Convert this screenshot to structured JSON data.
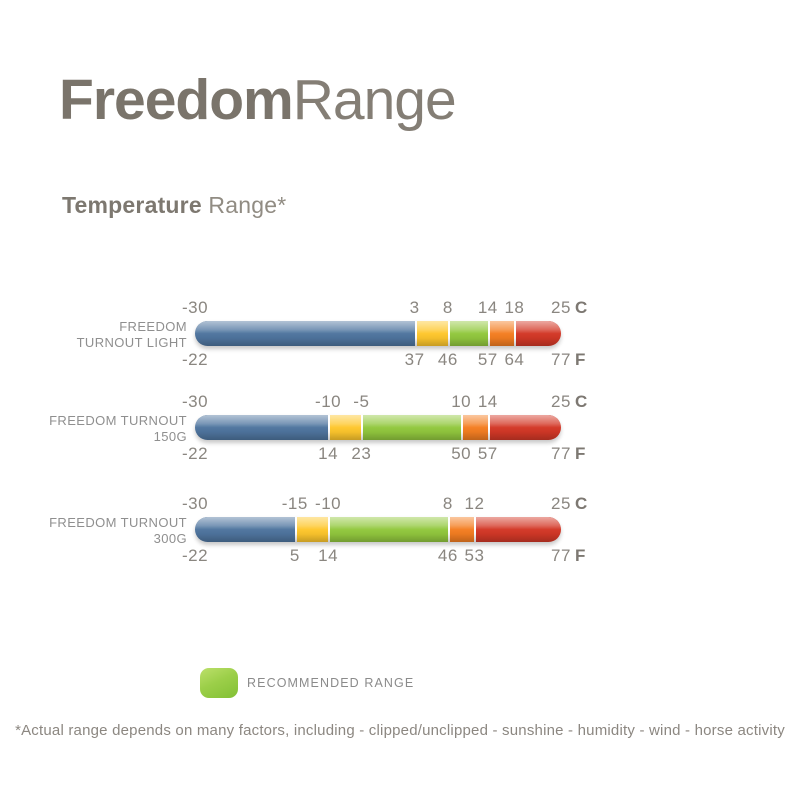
{
  "header": {
    "title_bold": "Freedom",
    "title_light": "Range"
  },
  "section_title": {
    "bold": "Temperature",
    "light": "Range*"
  },
  "legend": {
    "label": "RECOMMENDED RANGE"
  },
  "footnote": "*Actual range depends on many factors, including - clipped/unclipped - sunshine - humidity - wind - horse activity",
  "palette": {
    "blue": "#4f759f",
    "yellow": "#fec72d",
    "green": "#92c83e",
    "orange": "#f47e22",
    "red": "#d33827"
  },
  "chart_data": {
    "type": "bar",
    "variant": "horizontal-stacked-temperature-range",
    "title": "Temperature Range*",
    "legend": "RECOMMENDED RANGE = green segment",
    "axis": {
      "min_c": -30,
      "max_c": 25,
      "unit_top": "C",
      "unit_bottom": "F"
    },
    "rows": [
      {
        "label_lines": [
          "FREEDOM",
          "TURNOUT LIGHT"
        ],
        "c_labels": [
          "-30",
          "3",
          "8",
          "14",
          "18",
          "25"
        ],
        "f_labels": [
          "-22",
          "37",
          "46",
          "57",
          "64",
          "77"
        ],
        "boundary_values_c": [
          -30,
          3,
          8,
          14,
          18,
          25
        ],
        "segments": [
          {
            "from": -30,
            "to": 3,
            "color": "blue"
          },
          {
            "from": 3,
            "to": 8,
            "color": "yellow"
          },
          {
            "from": 8,
            "to": 14,
            "color": "green"
          },
          {
            "from": 14,
            "to": 18,
            "color": "orange"
          },
          {
            "from": 18,
            "to": 25,
            "color": "red"
          }
        ]
      },
      {
        "label_lines": [
          "FREEDOM TURNOUT",
          "150G"
        ],
        "c_labels": [
          "-30",
          "-10",
          "-5",
          "10",
          "14",
          "25"
        ],
        "f_labels": [
          "-22",
          "14",
          "23",
          "50",
          "57",
          "77"
        ],
        "boundary_values_c": [
          -30,
          -10,
          -5,
          10,
          14,
          25
        ],
        "segments": [
          {
            "from": -30,
            "to": -10,
            "color": "blue"
          },
          {
            "from": -10,
            "to": -5,
            "color": "yellow"
          },
          {
            "from": -5,
            "to": 10,
            "color": "green"
          },
          {
            "from": 10,
            "to": 14,
            "color": "orange"
          },
          {
            "from": 14,
            "to": 25,
            "color": "red"
          }
        ]
      },
      {
        "label_lines": [
          "FREEDOM TURNOUT",
          "300G"
        ],
        "c_labels": [
          "-30",
          "-15",
          "-10",
          "8",
          "12",
          "25"
        ],
        "f_labels": [
          "-22",
          "5",
          "14",
          "46",
          "53",
          "77"
        ],
        "boundary_values_c": [
          -30,
          -15,
          -10,
          8,
          12,
          25
        ],
        "segments": [
          {
            "from": -30,
            "to": -15,
            "color": "blue"
          },
          {
            "from": -15,
            "to": -10,
            "color": "yellow"
          },
          {
            "from": -10,
            "to": 8,
            "color": "green"
          },
          {
            "from": 8,
            "to": 12,
            "color": "orange"
          },
          {
            "from": 12,
            "to": 25,
            "color": "red"
          }
        ]
      }
    ]
  }
}
